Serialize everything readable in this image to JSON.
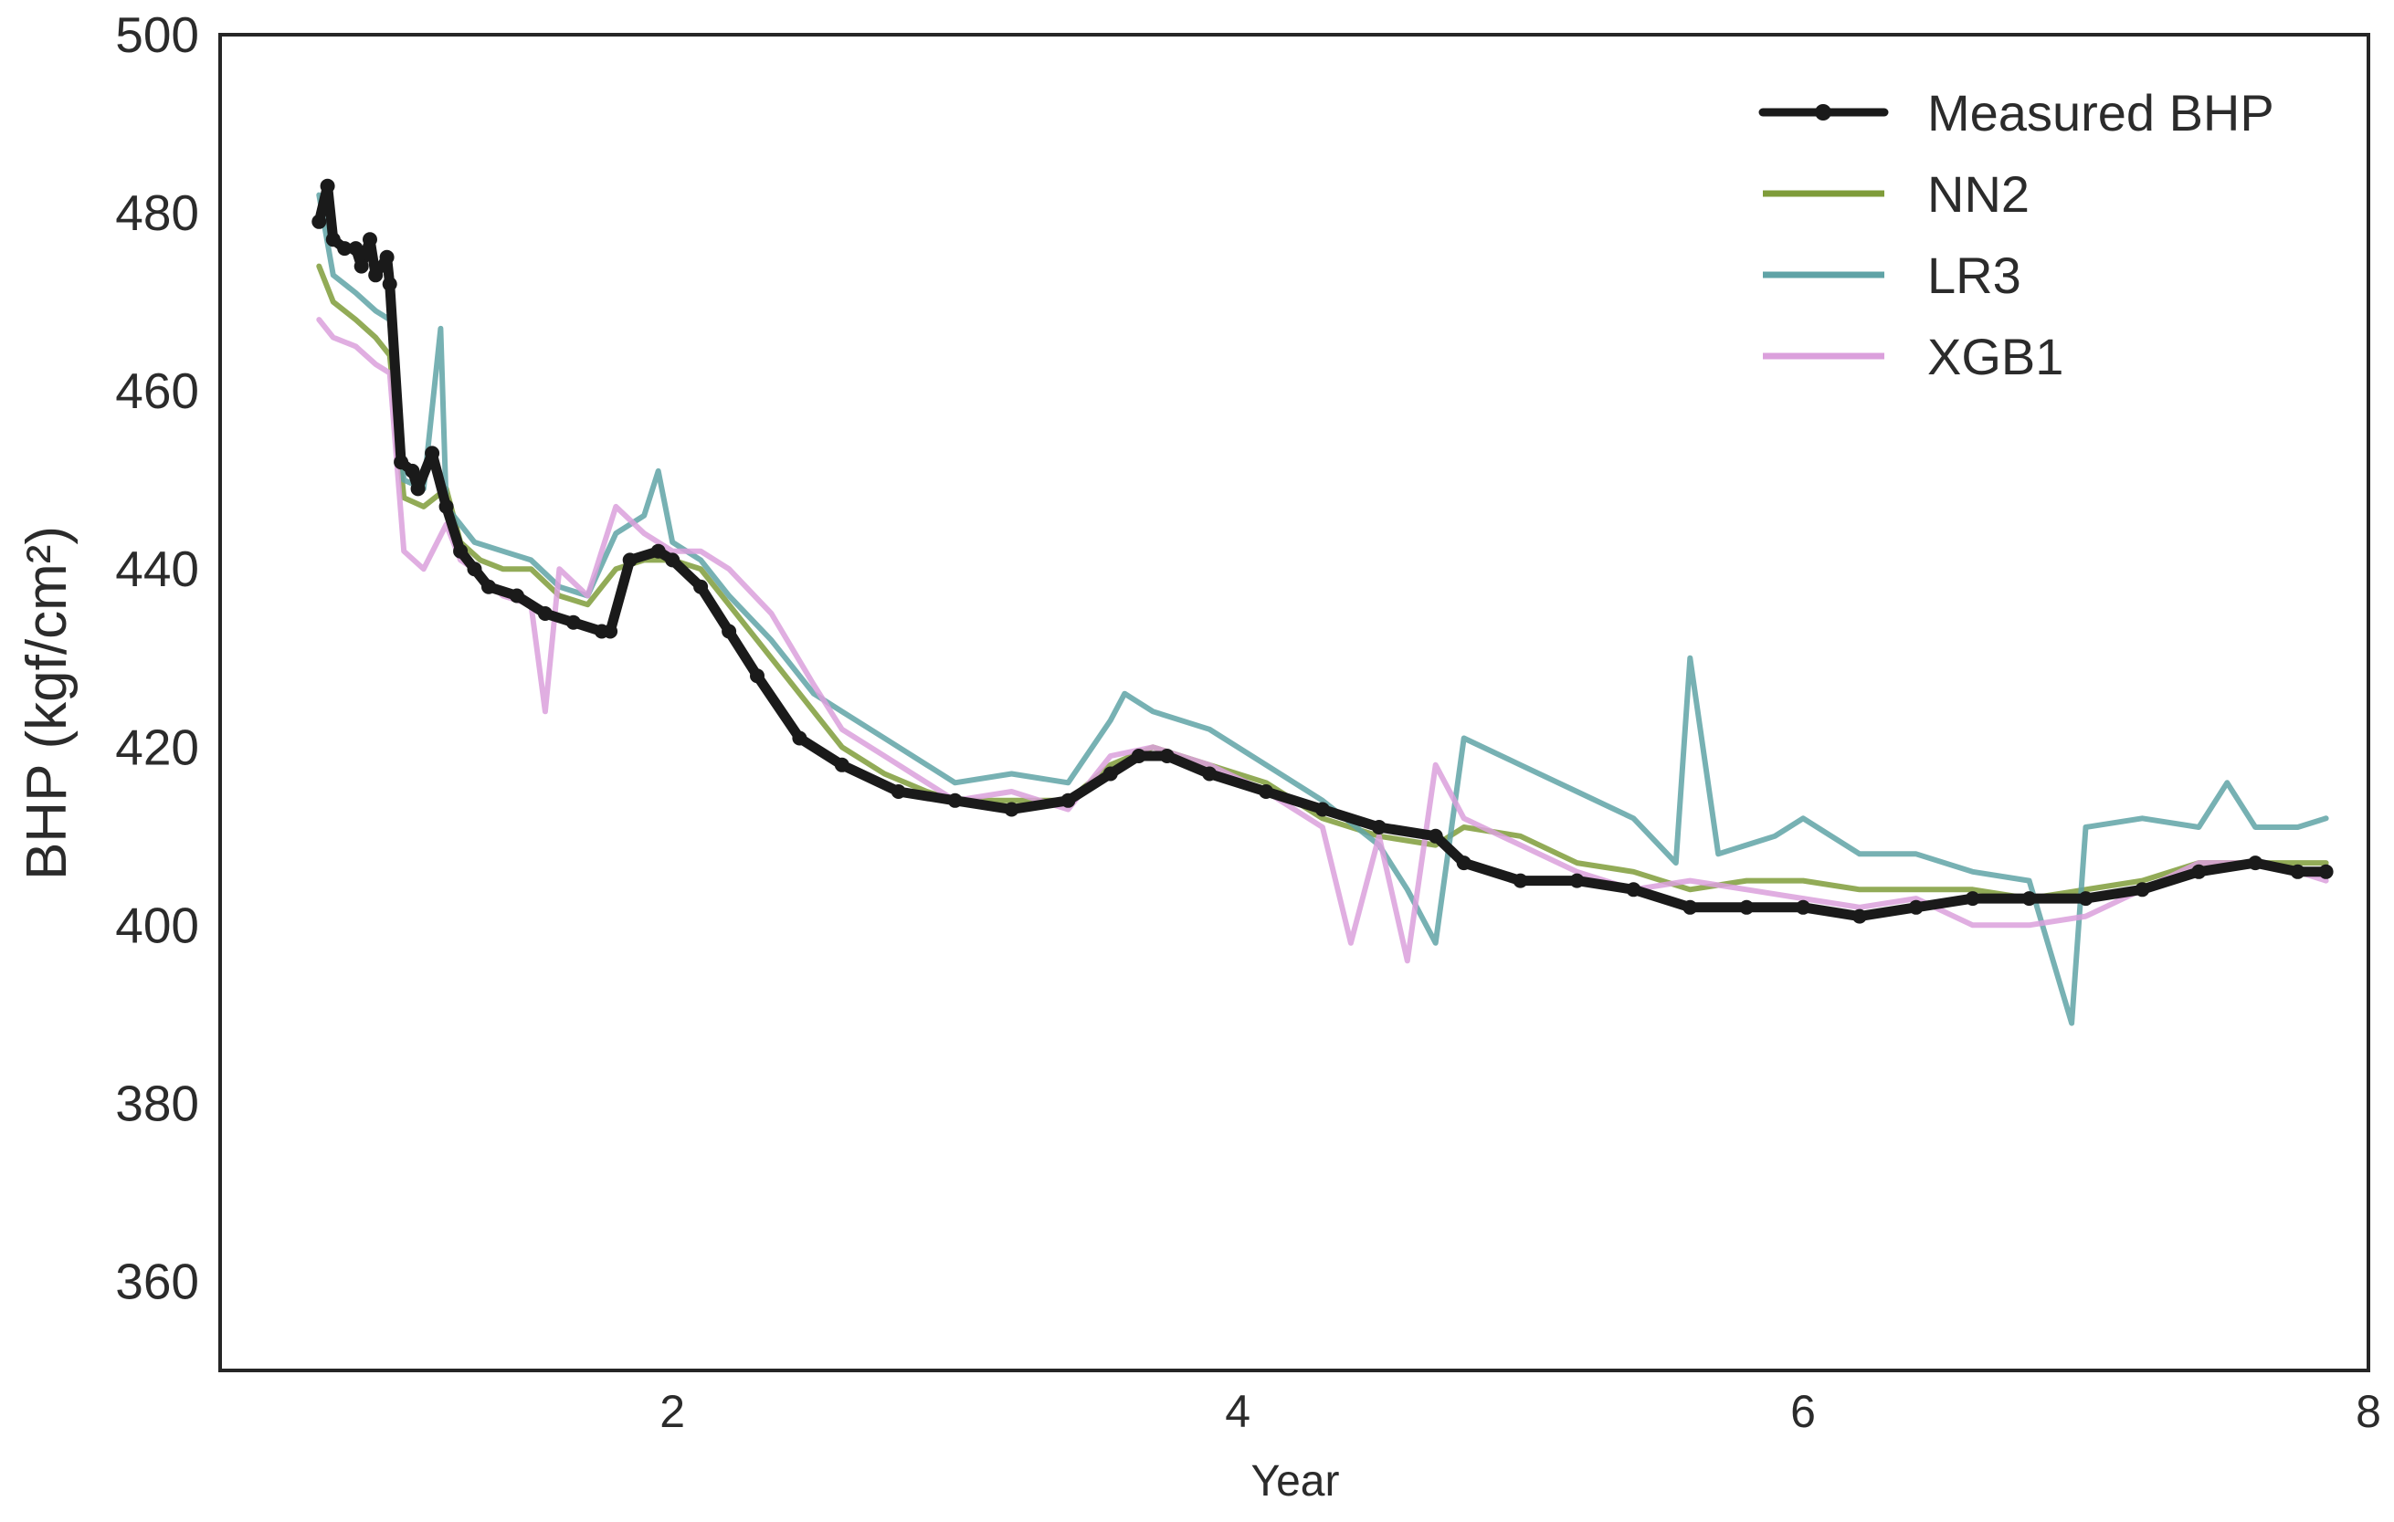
{
  "chart_data": {
    "type": "line",
    "title": "",
    "xlabel": "Year",
    "ylabel": "BHP (kgf/cm²)",
    "xlim": [
      0.4,
      8.0
    ],
    "ylim": [
      350,
      500
    ],
    "xticks": [
      2,
      4,
      6,
      8
    ],
    "yticks": [
      360,
      380,
      400,
      420,
      440,
      460,
      480,
      500
    ],
    "grid": false,
    "legend": {
      "position": "top-right"
    },
    "series": [
      {
        "name": "Measured BHP",
        "color": "#1a1a1a",
        "marker": "circle",
        "x": [
          0.75,
          0.78,
          0.8,
          0.84,
          0.88,
          0.9,
          0.93,
          0.95,
          0.99,
          1.0,
          1.04,
          1.08,
          1.1,
          1.15,
          1.2,
          1.25,
          1.3,
          1.35,
          1.45,
          1.55,
          1.65,
          1.75,
          1.78,
          1.85,
          1.95,
          2.0,
          2.1,
          2.2,
          2.3,
          2.45,
          2.6,
          2.8,
          3.0,
          3.2,
          3.4,
          3.55,
          3.65,
          3.75,
          3.9,
          4.1,
          4.3,
          4.5,
          4.7,
          4.8,
          5.0,
          5.2,
          5.4,
          5.6,
          5.8,
          6.0,
          6.2,
          6.4,
          6.6,
          6.8,
          7.0,
          7.2,
          7.4,
          7.6,
          7.75,
          7.85
        ],
        "y": [
          479,
          483,
          477,
          476,
          476,
          474,
          477,
          473,
          475,
          472,
          452,
          451,
          449,
          453,
          447,
          442,
          440,
          438,
          437,
          435,
          434,
          433,
          433,
          441,
          442,
          441,
          438,
          433,
          428,
          421,
          418,
          415,
          414,
          413,
          414,
          417,
          419,
          419,
          417,
          415,
          413,
          411,
          410,
          407,
          405,
          405,
          404,
          402,
          402,
          402,
          401,
          402,
          403,
          403,
          403,
          404,
          406,
          407,
          406,
          406
        ]
      },
      {
        "name": "NN2",
        "color": "#7f9c3a",
        "x": [
          0.75,
          0.8,
          0.88,
          0.95,
          1.0,
          1.05,
          1.12,
          1.2,
          1.25,
          1.32,
          1.4,
          1.5,
          1.6,
          1.7,
          1.8,
          1.9,
          2.0,
          2.1,
          2.2,
          2.35,
          2.5,
          2.6,
          2.75,
          2.9,
          3.0,
          3.2,
          3.4,
          3.55,
          3.7,
          3.9,
          4.1,
          4.3,
          4.5,
          4.7,
          4.8,
          5.0,
          5.2,
          5.4,
          5.6,
          5.8,
          6.0,
          6.2,
          6.4,
          6.6,
          6.8,
          7.0,
          7.2,
          7.4,
          7.6,
          7.75,
          7.85
        ],
        "y": [
          474,
          470,
          468,
          466,
          464,
          448,
          447,
          449,
          443,
          441,
          440,
          440,
          437,
          436,
          440,
          441,
          441,
          440,
          436,
          430,
          424,
          420,
          417,
          415,
          414,
          414,
          414,
          418,
          420,
          418,
          416,
          412,
          410,
          409,
          411,
          410,
          407,
          406,
          404,
          405,
          405,
          404,
          404,
          404,
          403,
          404,
          405,
          407,
          407,
          407,
          407
        ]
      },
      {
        "name": "LR3",
        "color": "#5fa3a6",
        "x": [
          0.75,
          0.8,
          0.88,
          0.95,
          1.0,
          1.05,
          1.12,
          1.18,
          1.2,
          1.25,
          1.3,
          1.4,
          1.5,
          1.6,
          1.7,
          1.8,
          1.9,
          1.95,
          2.0,
          2.1,
          2.2,
          2.35,
          2.5,
          2.6,
          2.75,
          2.9,
          3.0,
          3.2,
          3.4,
          3.55,
          3.6,
          3.7,
          3.9,
          4.1,
          4.3,
          4.5,
          4.6,
          4.7,
          4.8,
          5.0,
          5.2,
          5.4,
          5.55,
          5.6,
          5.7,
          5.9,
          6.0,
          6.2,
          6.4,
          6.6,
          6.8,
          6.95,
          7.0,
          7.2,
          7.4,
          7.5,
          7.6,
          7.75,
          7.85
        ],
        "y": [
          482,
          473,
          471,
          469,
          468,
          450,
          449,
          467,
          447,
          445,
          443,
          442,
          441,
          438,
          437,
          444,
          446,
          451,
          443,
          441,
          437,
          432,
          426,
          424,
          421,
          418,
          416,
          417,
          416,
          423,
          426,
          424,
          422,
          418,
          414,
          409,
          404,
          398,
          421,
          418,
          415,
          412,
          407,
          430,
          408,
          410,
          412,
          408,
          408,
          406,
          405,
          389,
          411,
          412,
          411,
          416,
          411,
          411,
          412
        ]
      },
      {
        "name": "XGB1",
        "color": "#dba0dc",
        "x": [
          0.75,
          0.8,
          0.88,
          0.95,
          1.0,
          1.05,
          1.12,
          1.2,
          1.25,
          1.3,
          1.4,
          1.5,
          1.55,
          1.6,
          1.7,
          1.8,
          1.9,
          2.0,
          2.1,
          2.2,
          2.35,
          2.5,
          2.6,
          2.75,
          2.9,
          3.0,
          3.2,
          3.4,
          3.55,
          3.7,
          3.9,
          4.1,
          4.3,
          4.4,
          4.5,
          4.6,
          4.7,
          4.8,
          5.0,
          5.2,
          5.4,
          5.6,
          5.8,
          6.0,
          6.2,
          6.4,
          6.6,
          6.8,
          7.0,
          7.2,
          7.4,
          7.6,
          7.75,
          7.85
        ],
        "y": [
          468,
          466,
          465,
          463,
          462,
          442,
          440,
          445,
          441,
          440,
          437,
          436,
          424,
          440,
          437,
          447,
          444,
          442,
          442,
          440,
          435,
          427,
          422,
          419,
          416,
          414,
          415,
          413,
          419,
          420,
          418,
          415,
          411,
          398,
          410,
          396,
          418,
          412,
          409,
          406,
          404,
          405,
          404,
          403,
          402,
          403,
          400,
          400,
          401,
          404,
          407,
          407,
          406,
          405
        ]
      }
    ]
  }
}
